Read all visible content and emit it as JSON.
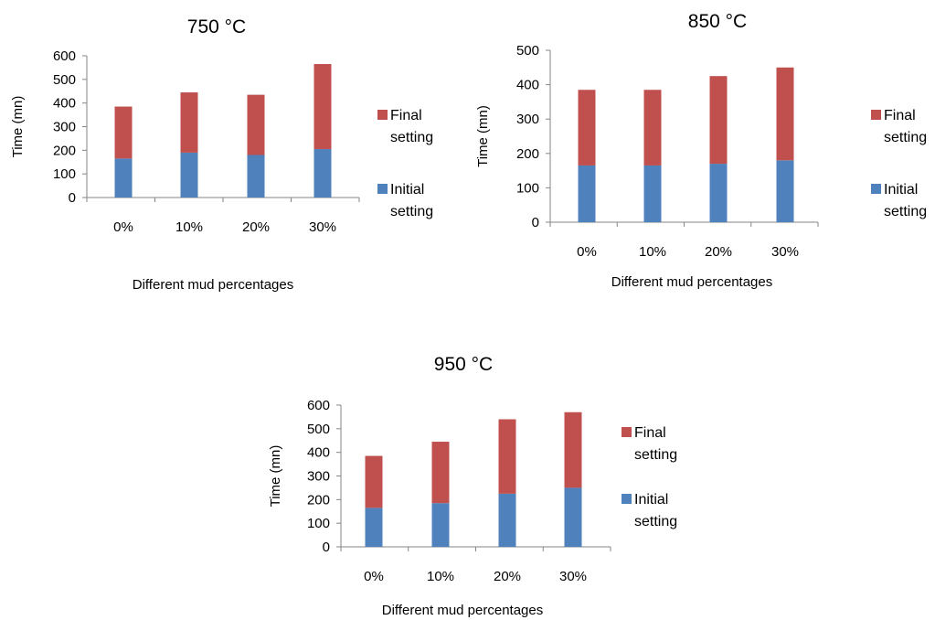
{
  "chart_data": [
    {
      "type": "bar",
      "stacked": true,
      "title": "750 °C",
      "xlabel": "Different mud percentages",
      "ylabel": "Time  (mn)",
      "categories": [
        "0%",
        "10%",
        "20%",
        "30%"
      ],
      "ylim": [
        0,
        600
      ],
      "yticks": [
        0,
        100,
        200,
        300,
        400,
        500,
        600
      ],
      "grid": false,
      "legend_position": "right",
      "series": [
        {
          "name": "Initial setting",
          "legend_lines": [
            "Initial",
            "setting"
          ],
          "color": "#4F81BD",
          "values": [
            165,
            190,
            180,
            205
          ]
        },
        {
          "name": "Final setting",
          "legend_lines": [
            "Final",
            "setting"
          ],
          "color": "#C0504D",
          "values": [
            220,
            255,
            255,
            360
          ]
        }
      ],
      "legend_order": [
        1,
        0
      ]
    },
    {
      "type": "bar",
      "stacked": true,
      "title": "850 °C",
      "xlabel": "Different mud percentages",
      "ylabel": "Time  (mn)",
      "categories": [
        "0%",
        "10%",
        "20%",
        "30%"
      ],
      "ylim": [
        0,
        500
      ],
      "yticks": [
        0,
        100,
        200,
        300,
        400,
        500
      ],
      "grid": false,
      "legend_position": "right",
      "series": [
        {
          "name": "Initial setting",
          "legend_lines": [
            "Initial",
            "setting"
          ],
          "color": "#4F81BD",
          "values": [
            165,
            165,
            170,
            180
          ]
        },
        {
          "name": "Final setting",
          "legend_lines": [
            "Final",
            "setting"
          ],
          "color": "#C0504D",
          "values": [
            220,
            220,
            255,
            270
          ]
        }
      ],
      "legend_order": [
        1,
        0
      ]
    },
    {
      "type": "bar",
      "stacked": true,
      "title": "950 °C",
      "xlabel": "Different mud percentages",
      "ylabel": "Time (mn)",
      "categories": [
        "0%",
        "10%",
        "20%",
        "30%"
      ],
      "ylim": [
        0,
        600
      ],
      "yticks": [
        0,
        100,
        200,
        300,
        400,
        500,
        600
      ],
      "grid": false,
      "legend_position": "right",
      "series": [
        {
          "name": "Initial setting",
          "legend_lines": [
            "Initial",
            "setting"
          ],
          "color": "#4F81BD",
          "values": [
            165,
            185,
            225,
            250
          ]
        },
        {
          "name": "Final setting",
          "legend_lines": [
            "Final",
            "setting"
          ],
          "color": "#C0504D",
          "values": [
            220,
            260,
            315,
            320
          ]
        }
      ],
      "legend_order": [
        1,
        0
      ]
    }
  ]
}
